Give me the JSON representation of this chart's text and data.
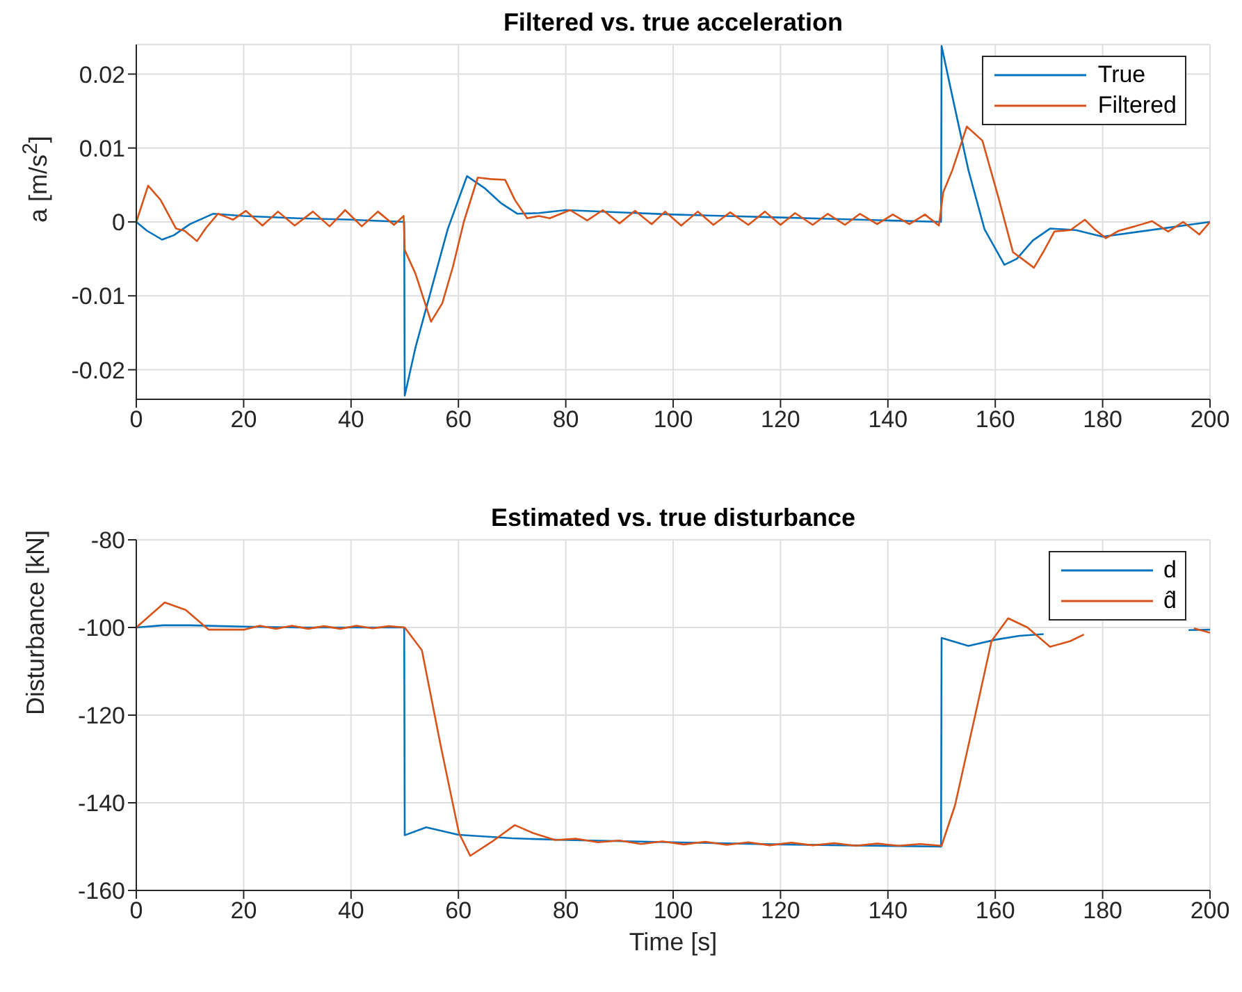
{
  "chart_data": [
    {
      "type": "line",
      "title": "Filtered vs. true acceleration",
      "ylabel": "a [m/s$^{2}$]",
      "xlim": [
        0,
        200
      ],
      "xticks": [
        0,
        20,
        40,
        60,
        80,
        100,
        120,
        140,
        160,
        180,
        200
      ],
      "ylim": [
        -0.024,
        0.024
      ],
      "yticks": [
        -0.02,
        -0.01,
        0,
        0.01,
        0.02
      ],
      "grid": true,
      "legend": "top right",
      "series": [
        {
          "name": "True",
          "color": "#0072bd",
          "x": [
            0,
            2,
            4.8,
            7,
            10,
            14.3,
            20,
            30,
            40,
            49.9,
            50,
            52,
            55,
            58,
            61.6,
            65,
            68,
            71,
            75,
            80,
            90,
            100,
            110,
            120,
            130,
            140,
            149.9,
            150,
            152,
            155,
            158,
            161.7,
            164,
            167,
            170.2,
            175,
            180,
            190,
            200
          ],
          "values": [
            0,
            -0.0012,
            -0.0024,
            -0.0018,
            -0.0003,
            0.0011,
            0.0008,
            0.0005,
            0.0003,
            0,
            -0.0235,
            -0.017,
            -0.009,
            -0.001,
            0.0062,
            0.0045,
            0.0025,
            0.0011,
            0.0012,
            0.0016,
            0.0013,
            0.001,
            0.0008,
            0.0006,
            0.0004,
            0.0002,
            0,
            0.0238,
            0.017,
            0.007,
            -0.001,
            -0.0058,
            -0.005,
            -0.0025,
            -0.0009,
            -0.0011,
            -0.002,
            -0.001,
            0
          ]
        },
        {
          "name": "Filtered",
          "color": "#d95319",
          "x": [
            0,
            2.2,
            4.5,
            7.4,
            9,
            11.3,
            13,
            15.2,
            17,
            18,
            20.4,
            23.5,
            26.4,
            29.5,
            32.9,
            36,
            38.9,
            42,
            45,
            48,
            49.8,
            50,
            52,
            54.9,
            57,
            59,
            61,
            63.6,
            66,
            68.7,
            70.5,
            72.8,
            75,
            77,
            80.8,
            84,
            86.9,
            90,
            92.9,
            96,
            98.5,
            101.5,
            104.6,
            107.5,
            110.6,
            114,
            117.1,
            120,
            122.7,
            126,
            128.8,
            132,
            134.8,
            138,
            140.9,
            144,
            146.9,
            149.5,
            150.3,
            152,
            154.7,
            157.6,
            160.7,
            163.3,
            165,
            167.2,
            169,
            171,
            174,
            176.7,
            178.5,
            180.6,
            183,
            186,
            189.2,
            192.2,
            195,
            198,
            200
          ],
          "values": [
            0,
            0.0049,
            0.003,
            -0.0009,
            -0.0012,
            -0.0026,
            -0.0008,
            0.0011,
            0.0006,
            0.0003,
            0.0015,
            -0.0005,
            0.0014,
            -0.0005,
            0.0014,
            -0.0006,
            0.0016,
            -0.0006,
            0.0014,
            -0.0004,
            0.0008,
            -0.0038,
            -0.007,
            -0.0135,
            -0.011,
            -0.006,
            0,
            0.006,
            0.0058,
            0.0057,
            0.003,
            0.0005,
            0.0008,
            0.0005,
            0.0016,
            0.0002,
            0.0016,
            -0.0002,
            0.0015,
            -0.0003,
            0.0014,
            -0.0005,
            0.0014,
            -0.0004,
            0.0013,
            -0.0004,
            0.0014,
            -0.0004,
            0.0012,
            -0.0004,
            0.0011,
            -0.0004,
            0.0011,
            -0.0003,
            0.001,
            -0.0003,
            0.001,
            -0.0005,
            0.004,
            0.007,
            0.0129,
            0.011,
            0.003,
            -0.0041,
            -0.005,
            -0.0062,
            -0.004,
            -0.0013,
            -0.0011,
            0.0003,
            -0.001,
            -0.0022,
            -0.0012,
            -0.0006,
            0.0001,
            -0.0013,
            0,
            -0.0017,
            0
          ]
        }
      ]
    },
    {
      "type": "line",
      "title": "Estimated vs. true disturbance",
      "xlabel": "Time [s]",
      "ylabel": "Disturbance [kN]",
      "xlim": [
        0,
        200
      ],
      "xticks": [
        0,
        20,
        40,
        60,
        80,
        100,
        120,
        140,
        160,
        180,
        200
      ],
      "ylim": [
        -160,
        -80
      ],
      "yticks": [
        -160,
        -140,
        -120,
        -100,
        -80
      ],
      "grid": true,
      "legend": "top right",
      "series": [
        {
          "name": "d",
          "color": "#0072bd",
          "x": [
            0,
            5,
            10,
            20,
            30,
            40,
            49.9,
            50,
            54,
            60,
            70,
            80,
            100,
            120,
            149.9,
            150,
            155,
            160,
            164.5,
            169,
            180,
            196,
            200
          ],
          "values": [
            -100,
            -99.5,
            -99.5,
            -99.8,
            -100,
            -100,
            -100,
            -147.4,
            -145.6,
            -147.3,
            -148.1,
            -148.5,
            -149,
            -149.5,
            -150,
            -102.4,
            -104.2,
            -102.8,
            -101.9,
            -101.5,
            null,
            -100.6,
            -100.5
          ]
        },
        {
          "name": "d̂",
          "color": "#d95319",
          "x": [
            0,
            5.3,
            9.2,
            13.5,
            20,
            23,
            26,
            29,
            32,
            35,
            38,
            41,
            44,
            47,
            50,
            53.2,
            56.7,
            60.1,
            62.2,
            66.1,
            70.5,
            73.9,
            78,
            82,
            86,
            90,
            94,
            98,
            102,
            106,
            110,
            114,
            118,
            122,
            126,
            130,
            134,
            138,
            142,
            146,
            150,
            152.5,
            156.3,
            159.3,
            162.4,
            166,
            170.2,
            174,
            176.5,
            185,
            197,
            200
          ],
          "values": [
            -100,
            -94.3,
            -96,
            -100.5,
            -100.5,
            -99.6,
            -100.3,
            -99.6,
            -100.3,
            -99.7,
            -100.3,
            -99.6,
            -100.2,
            -99.7,
            -100,
            -105.2,
            -127,
            -146.9,
            -152.1,
            -149,
            -145.1,
            -146.9,
            -148.5,
            -148.2,
            -149,
            -148.6,
            -149.4,
            -148.8,
            -149.5,
            -148.9,
            -149.6,
            -149,
            -149.7,
            -149.1,
            -149.7,
            -149.2,
            -149.8,
            -149.3,
            -149.8,
            -149.4,
            -149.8,
            -140.6,
            -119.8,
            -103.1,
            -97.9,
            -100,
            -104.4,
            -103.1,
            -101.6,
            null,
            -100.2,
            -101.2
          ]
        }
      ]
    }
  ]
}
